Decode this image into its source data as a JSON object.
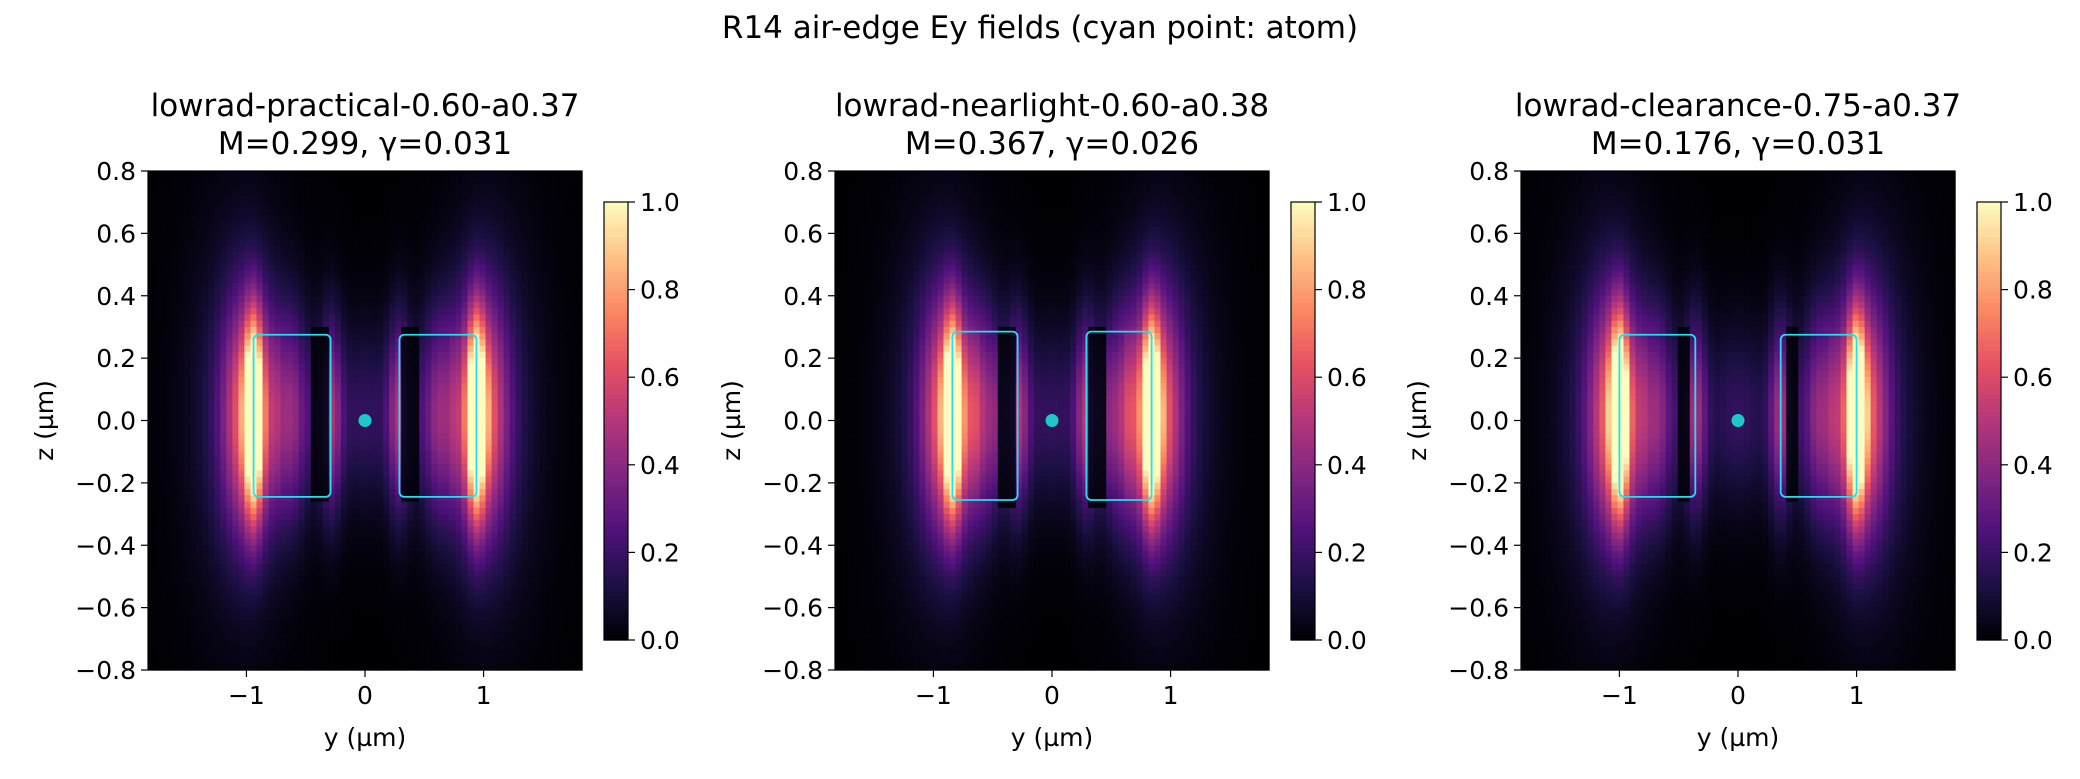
{
  "figure": {
    "suptitle": "R14 air-edge Ey fields (cyan point: atom)"
  },
  "chart_data": [
    {
      "type": "heatmap",
      "title": "lowrad-practical-0.60-a0.37",
      "subtitle": "M=0.299, γ=0.031",
      "xlabel": "y (µm)",
      "ylabel": "z (µm)",
      "xlim": [
        -1.83,
        1.83
      ],
      "ylim": [
        -0.8,
        0.8
      ],
      "xticks": [
        -1,
        0,
        1
      ],
      "xtick_labels": [
        "−1",
        "0",
        "1"
      ],
      "yticks": [
        0.8,
        0.6,
        0.4,
        0.2,
        0.0,
        -0.2,
        -0.4,
        -0.6,
        -0.8
      ],
      "ytick_labels": [
        "0.8",
        "0.6",
        "0.4",
        "0.2",
        "0.0",
        "−0.2",
        "−0.4",
        "−0.6",
        "−0.8"
      ],
      "colormap": "magma",
      "colorbar": {
        "min": 0.0,
        "max": 1.0,
        "ticks": [
          "0.0",
          "0.2",
          "0.4",
          "0.6",
          "0.8",
          "1.0"
        ]
      },
      "outline_color": "#22e0f0",
      "blocks": [
        {
          "y0": -0.94,
          "y1": -0.29,
          "z0": -0.245,
          "z1": 0.275
        },
        {
          "y0": 0.29,
          "y1": 0.94,
          "z0": -0.245,
          "z1": 0.275
        }
      ],
      "atom": {
        "y": 0.0,
        "z": 0.0,
        "color": "#1ec8c8"
      }
    },
    {
      "type": "heatmap",
      "title": "lowrad-nearlight-0.60-a0.38",
      "subtitle": "M=0.367, γ=0.026",
      "xlabel": "y (µm)",
      "ylabel": "z (µm)",
      "xlim": [
        -1.83,
        1.83
      ],
      "ylim": [
        -0.8,
        0.8
      ],
      "xticks": [
        -1,
        0,
        1
      ],
      "xtick_labels": [
        "−1",
        "0",
        "1"
      ],
      "yticks": [
        0.8,
        0.6,
        0.4,
        0.2,
        0.0,
        -0.2,
        -0.4,
        -0.6,
        -0.8
      ],
      "ytick_labels": [
        "0.8",
        "0.6",
        "0.4",
        "0.2",
        "0.0",
        "−0.2",
        "−0.4",
        "−0.6",
        "−0.8"
      ],
      "colormap": "magma",
      "colorbar": {
        "min": 0.0,
        "max": 1.0,
        "ticks": [
          "0.0",
          "0.2",
          "0.4",
          "0.6",
          "0.8",
          "1.0"
        ]
      },
      "outline_color": "#22e0f0",
      "blocks": [
        {
          "y0": -0.84,
          "y1": -0.29,
          "z0": -0.255,
          "z1": 0.285
        },
        {
          "y0": 0.29,
          "y1": 0.84,
          "z0": -0.255,
          "z1": 0.285
        }
      ],
      "atom": {
        "y": 0.0,
        "z": 0.0,
        "color": "#1ec8c8"
      }
    },
    {
      "type": "heatmap",
      "title": "lowrad-clearance-0.75-a0.37",
      "subtitle": "M=0.176, γ=0.031",
      "xlabel": "y (µm)",
      "ylabel": "z (µm)",
      "xlim": [
        -1.83,
        1.83
      ],
      "ylim": [
        -0.8,
        0.8
      ],
      "xticks": [
        -1,
        0,
        1
      ],
      "xtick_labels": [
        "−1",
        "0",
        "1"
      ],
      "yticks": [
        0.8,
        0.6,
        0.4,
        0.2,
        0.0,
        -0.2,
        -0.4,
        -0.6,
        -0.8
      ],
      "ytick_labels": [
        "0.8",
        "0.6",
        "0.4",
        "0.2",
        "0.0",
        "−0.2",
        "−0.4",
        "−0.6",
        "−0.8"
      ],
      "colormap": "magma",
      "colorbar": {
        "min": 0.0,
        "max": 1.0,
        "ticks": [
          "0.0",
          "0.2",
          "0.4",
          "0.6",
          "0.8",
          "1.0"
        ]
      },
      "outline_color": "#22e0f0",
      "blocks": [
        {
          "y0": -1.0,
          "y1": -0.36,
          "z0": -0.245,
          "z1": 0.275
        },
        {
          "y0": 0.36,
          "y1": 1.0,
          "z0": -0.245,
          "z1": 0.275
        }
      ],
      "atom": {
        "y": 0.0,
        "z": 0.0,
        "color": "#1ec8c8"
      }
    }
  ]
}
